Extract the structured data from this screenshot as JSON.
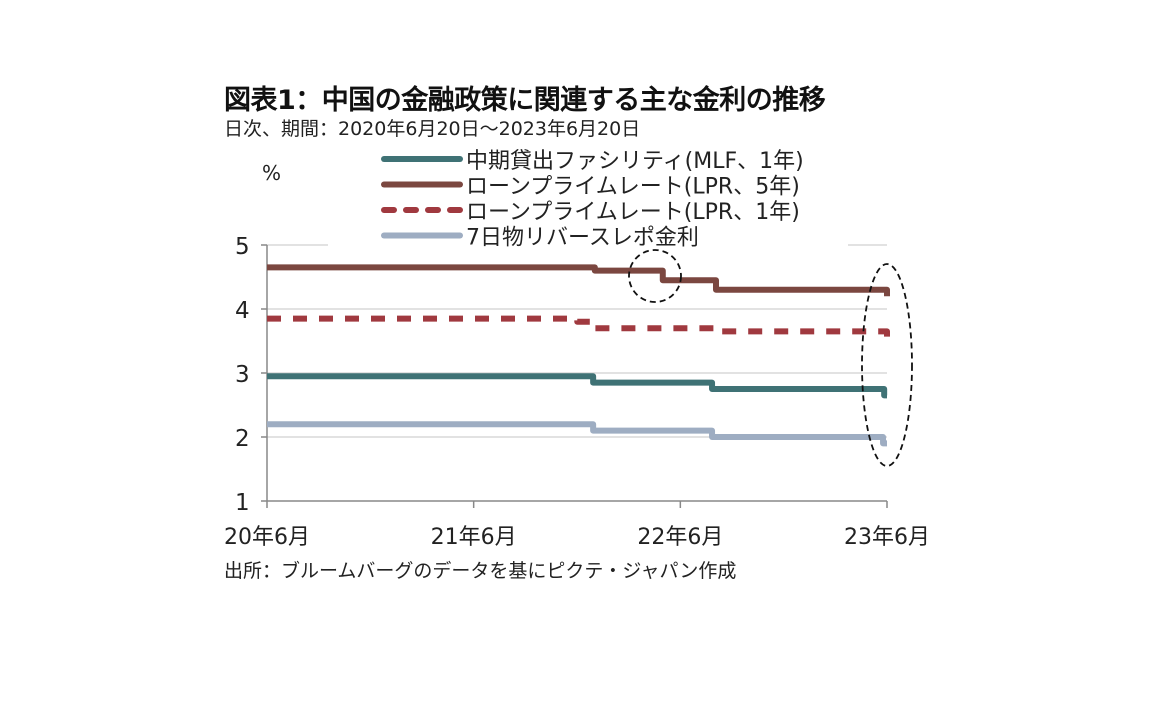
{
  "title": "図表1：中国の金融政策に関連する主な金利の推移",
  "subtitle": "日次、期間：2020年6月20日～2023年6月20日",
  "source": "出所：ブルームバーグのデータを基にピクテ・ジャパン作成",
  "chart_data": {
    "type": "line",
    "ylabel": "%",
    "ylim": [
      1,
      5
    ],
    "yticks": [
      "1",
      "2",
      "3",
      "4",
      "5"
    ],
    "xlim": [
      "2020-06-20",
      "2023-06-20"
    ],
    "xticks": [
      {
        "date": "2020-06-20",
        "label": "20年6月"
      },
      {
        "date": "2021-06-20",
        "label": "21年6月"
      },
      {
        "date": "2022-06-20",
        "label": "22年6月"
      },
      {
        "date": "2023-06-20",
        "label": "23年6月"
      }
    ],
    "grid": true,
    "legend_position": "top",
    "series": [
      {
        "name": "中期貸出ファシリティ(MLF、1年)",
        "color": "#3f7275",
        "dash": false,
        "steps": [
          [
            "2020-06-20",
            2.95
          ],
          [
            "2022-01-17",
            2.85
          ],
          [
            "2022-08-15",
            2.75
          ],
          [
            "2023-06-15",
            2.65
          ]
        ]
      },
      {
        "name": "ローンプライムレート(LPR、5年)",
        "color": "#7b4740",
        "dash": false,
        "steps": [
          [
            "2020-06-20",
            4.65
          ],
          [
            "2022-01-20",
            4.6
          ],
          [
            "2022-05-20",
            4.45
          ],
          [
            "2022-08-22",
            4.3
          ],
          [
            "2023-06-20",
            4.2
          ]
        ]
      },
      {
        "name": "ローンプライムレート(LPR、1年)",
        "color": "#a0393f",
        "dash": true,
        "steps": [
          [
            "2020-06-20",
            3.85
          ],
          [
            "2021-12-20",
            3.8
          ],
          [
            "2022-01-20",
            3.7
          ],
          [
            "2022-08-22",
            3.65
          ],
          [
            "2023-06-20",
            3.55
          ]
        ]
      },
      {
        "name": "7日物リバースレポ金利",
        "color": "#9eadc2",
        "dash": false,
        "steps": [
          [
            "2020-06-20",
            2.2
          ],
          [
            "2022-01-17",
            2.1
          ],
          [
            "2022-08-15",
            2.0
          ],
          [
            "2023-06-13",
            1.9
          ]
        ]
      }
    ]
  }
}
